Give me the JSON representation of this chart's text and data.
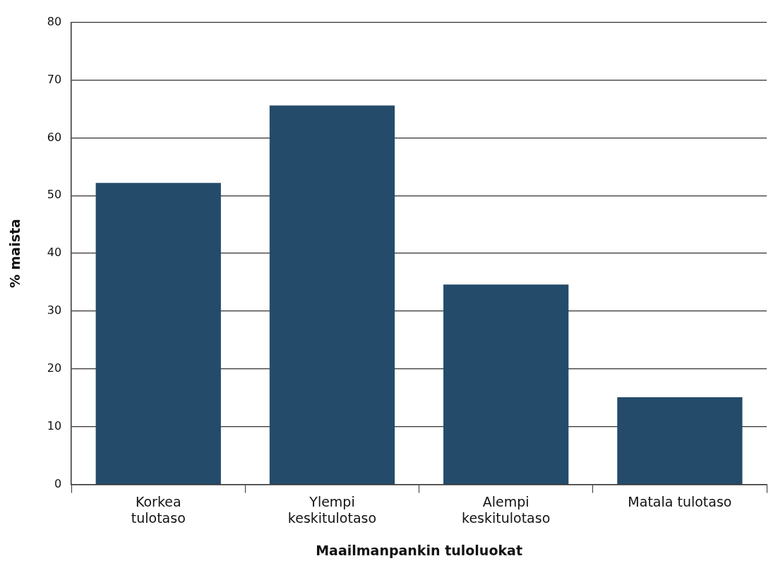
{
  "chart_data": {
    "type": "bar",
    "xlabel": "Maailmanpankin tuloluokat",
    "ylabel": "% maista",
    "categories": [
      "Korkea\ntulotaso",
      "Ylempi\nkeskitulotaso",
      "Alempi\nkeskitulotaso",
      "Matala tulotaso"
    ],
    "values": [
      52.2,
      65.6,
      34.6,
      15.1
    ],
    "color": "#244b6a",
    "ylim": [
      0,
      80
    ],
    "yticks": [
      0,
      10,
      20,
      30,
      40,
      50,
      60,
      70,
      80
    ],
    "grid": "y",
    "legend": false
  }
}
